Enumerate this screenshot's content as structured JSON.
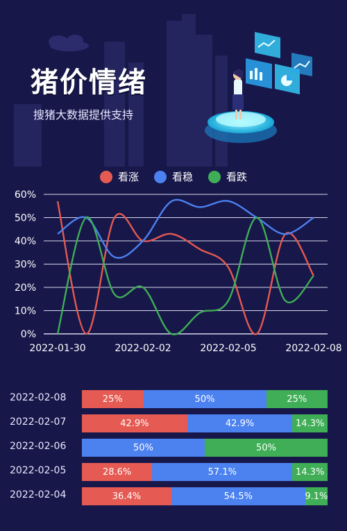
{
  "header": {
    "title": "猪价情绪",
    "subtitle": "搜猪大数据提供支持"
  },
  "colors": {
    "background": "#17174a",
    "up": "#e55a52",
    "stable": "#4c82f0",
    "down": "#3fae56"
  },
  "legend": [
    {
      "label": "看涨",
      "color": "#e55a52"
    },
    {
      "label": "看稳",
      "color": "#4c82f0"
    },
    {
      "label": "看跌",
      "color": "#3fae56"
    }
  ],
  "chart_data": [
    {
      "type": "line",
      "x": [
        "2022-01-30",
        "2022-01-31",
        "2022-02-01",
        "2022-02-02",
        "2022-02-03",
        "2022-02-04",
        "2022-02-05",
        "2022-02-06",
        "2022-02-07",
        "2022-02-08"
      ],
      "x_tick_labels": [
        "2022-01-30",
        "2022-02-02",
        "2022-02-05",
        "2022-02-08"
      ],
      "series": [
        {
          "name": "看涨",
          "color": "#e55a52",
          "values": [
            57,
            0,
            50,
            40,
            43,
            36.4,
            28.6,
            0,
            42.9,
            25
          ]
        },
        {
          "name": "看稳",
          "color": "#4c82f0",
          "values": [
            43,
            50,
            33,
            40,
            57,
            54.5,
            57.1,
            50,
            42.9,
            50
          ]
        },
        {
          "name": "看跌",
          "color": "#3fae56",
          "values": [
            0,
            50,
            17,
            20,
            0,
            9.1,
            14.3,
            50,
            14.3,
            25
          ]
        }
      ],
      "ylim": [
        0,
        60
      ],
      "y_ticks": [
        "0%",
        "10%",
        "20%",
        "30%",
        "40%",
        "50%",
        "60%"
      ],
      "grid": true,
      "legend_position": "top-center"
    },
    {
      "type": "bar",
      "stacked": true,
      "orientation": "horizontal",
      "categories": [
        "2022-02-08",
        "2022-02-07",
        "2022-02-06",
        "2022-02-05",
        "2022-02-04"
      ],
      "series": [
        {
          "name": "看涨",
          "color": "#e55a52",
          "values": [
            25,
            42.9,
            0,
            28.6,
            36.4
          ],
          "labels": [
            "25%",
            "42.9%",
            "0%",
            "28.6%",
            "36.4%"
          ]
        },
        {
          "name": "看稳",
          "color": "#4c82f0",
          "values": [
            50,
            42.9,
            50,
            57.1,
            54.5
          ],
          "labels": [
            "50%",
            "42.9%",
            "50%",
            "57.1%",
            "54.5%"
          ]
        },
        {
          "name": "看跌",
          "color": "#3fae56",
          "values": [
            25,
            14.3,
            50,
            14.3,
            9.1
          ],
          "labels": [
            "25%",
            "14.3%",
            "50%",
            "14.3%",
            "9.1%"
          ]
        }
      ]
    }
  ]
}
